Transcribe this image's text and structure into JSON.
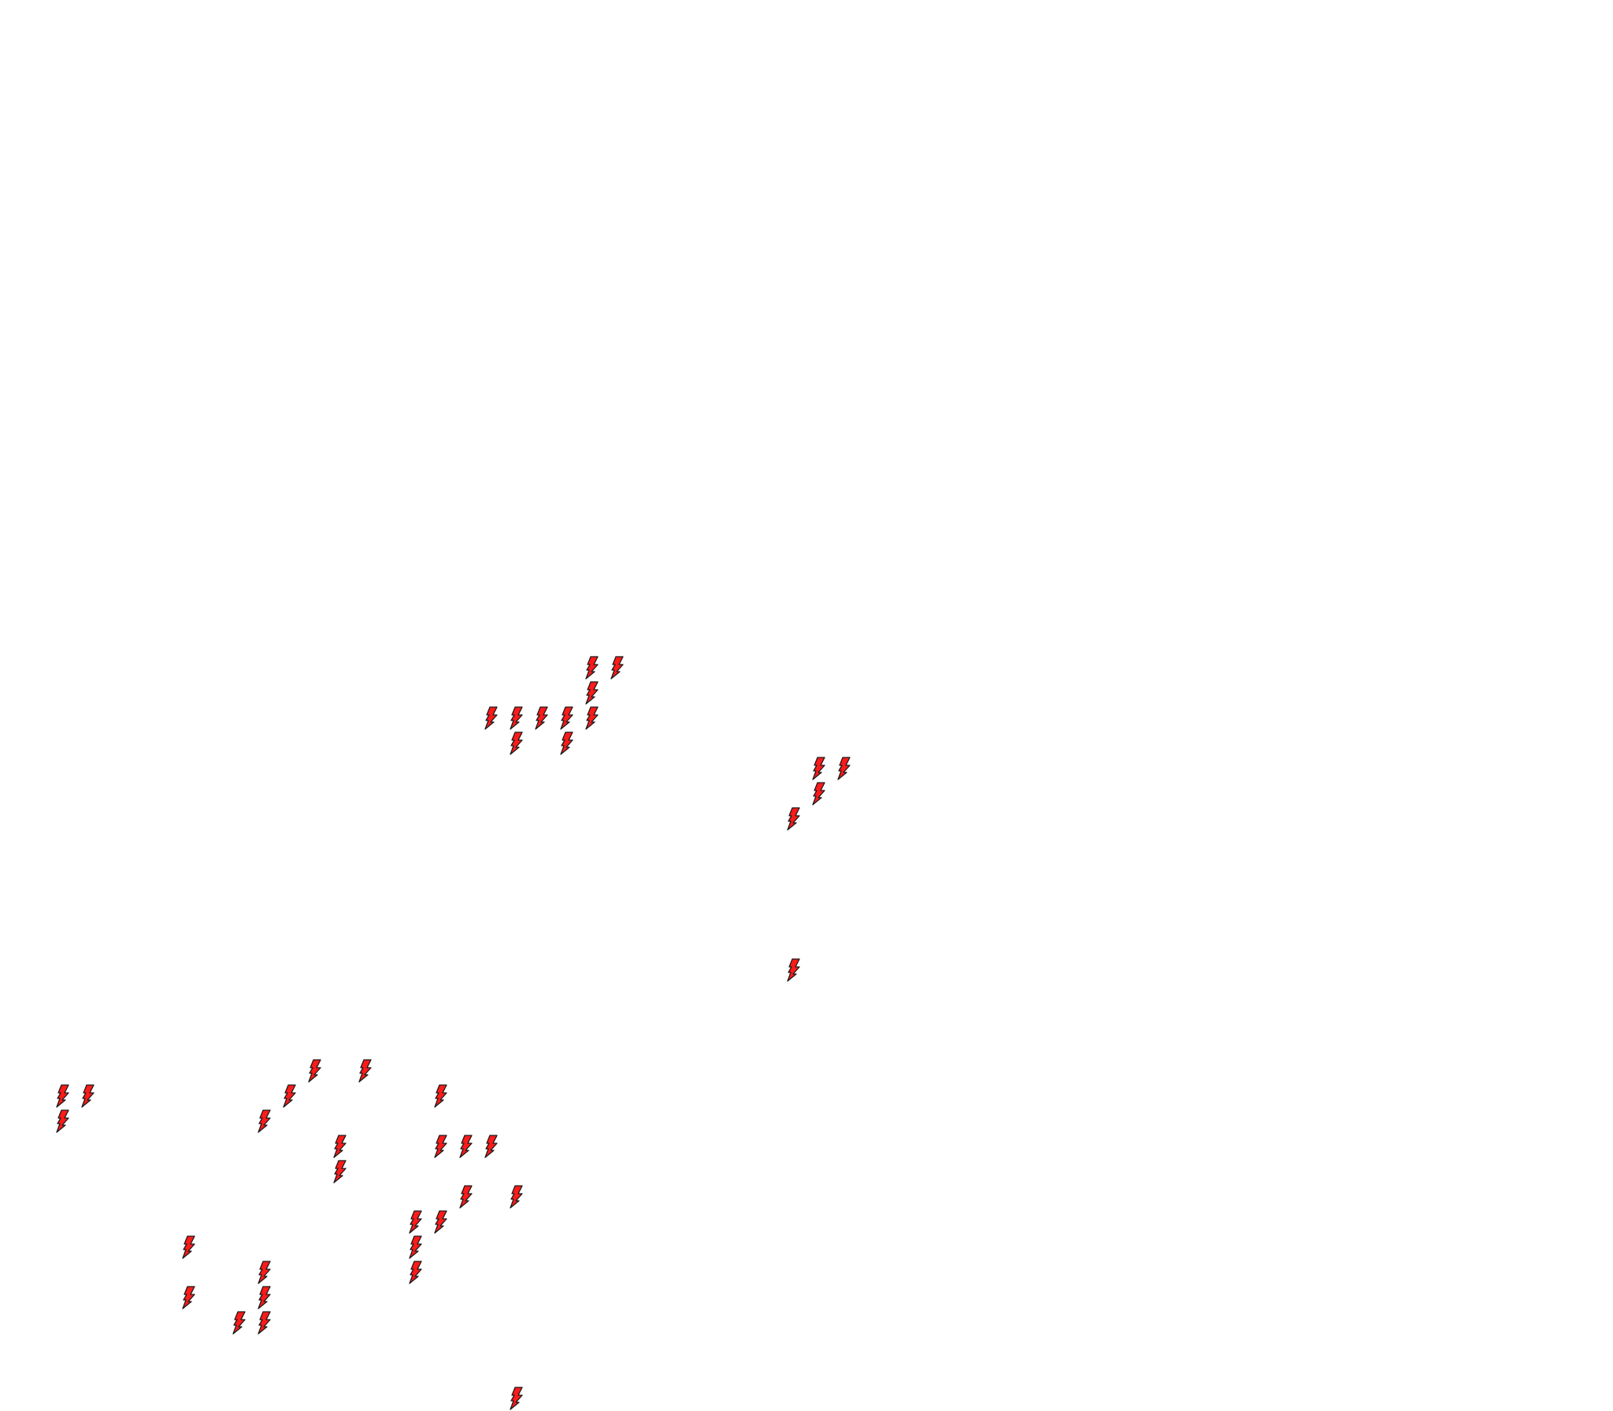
{
  "map": {
    "background_color": "#ffffff",
    "marker": {
      "icon": "lightning-bolt-icon",
      "fill_color": "#ff1a1a",
      "stroke_color": "#1a1a1a",
      "count": 39
    }
  }
}
